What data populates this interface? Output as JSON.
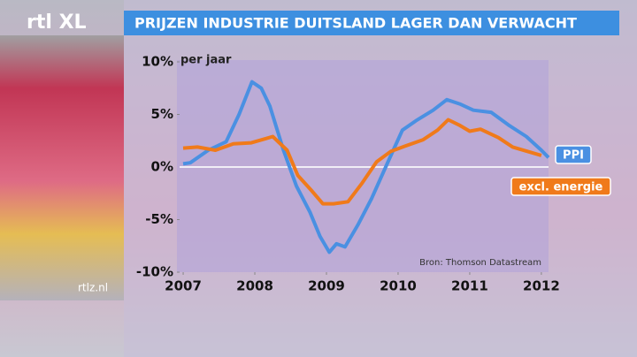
{
  "logo": "rtl XL",
  "site": "rtlz.nl",
  "chart_data": {
    "type": "line",
    "title": "PRIJZEN INDUSTRIE DUITSLAND LAGER DAN VERWACHT",
    "y_label": "per jaar",
    "source": "Bron: Thomson Datastream",
    "xlim": [
      2006.95,
      2012.1
    ],
    "xticks": [
      2007,
      2008,
      2009,
      2010,
      2011,
      2012
    ],
    "ylim": [
      -10,
      10
    ],
    "yticks": [
      {
        "value": -10,
        "label": "-10%"
      },
      {
        "value": -5,
        "label": "-5%"
      },
      {
        "value": 0,
        "label": "0%"
      },
      {
        "value": 5,
        "label": "5%"
      },
      {
        "value": 10,
        "label": "10%"
      }
    ],
    "series": [
      {
        "name": "PPI",
        "color": "#4a90e2",
        "x": [
          2007.0,
          2007.1,
          2007.35,
          2007.6,
          2007.78,
          2007.96,
          2008.09,
          2008.21,
          2008.4,
          2008.58,
          2008.77,
          2008.91,
          2009.04,
          2009.14,
          2009.26,
          2009.44,
          2009.63,
          2009.88,
          2010.06,
          2010.25,
          2010.49,
          2010.68,
          2010.86,
          2011.05,
          2011.3,
          2011.54,
          2011.79,
          2012.0,
          2012.1
        ],
        "values": [
          0.3,
          0.4,
          1.6,
          2.4,
          5.0,
          8.1,
          7.5,
          5.8,
          1.6,
          -1.8,
          -4.3,
          -6.6,
          -8.1,
          -7.3,
          -7.6,
          -5.5,
          -3.0,
          0.8,
          3.5,
          4.4,
          5.4,
          6.4,
          6.0,
          5.4,
          5.2,
          4.0,
          2.9,
          1.6,
          0.9
        ]
      },
      {
        "name": "excl. energie",
        "color": "#f07a1a",
        "x": [
          2007.0,
          2007.2,
          2007.45,
          2007.7,
          2007.95,
          2008.15,
          2008.25,
          2008.45,
          2008.6,
          2008.8,
          2008.95,
          2009.1,
          2009.3,
          2009.5,
          2009.7,
          2009.9,
          2010.1,
          2010.35,
          2010.55,
          2010.7,
          2010.85,
          2011.0,
          2011.15,
          2011.4,
          2011.6,
          2011.8,
          2012.0
        ],
        "values": [
          1.8,
          1.9,
          1.6,
          2.2,
          2.3,
          2.7,
          2.9,
          1.6,
          -0.8,
          -2.3,
          -3.5,
          -3.5,
          -3.3,
          -1.5,
          0.5,
          1.5,
          2.0,
          2.6,
          3.5,
          4.5,
          4.0,
          3.4,
          3.6,
          2.8,
          1.9,
          1.5,
          1.1
        ]
      }
    ]
  }
}
